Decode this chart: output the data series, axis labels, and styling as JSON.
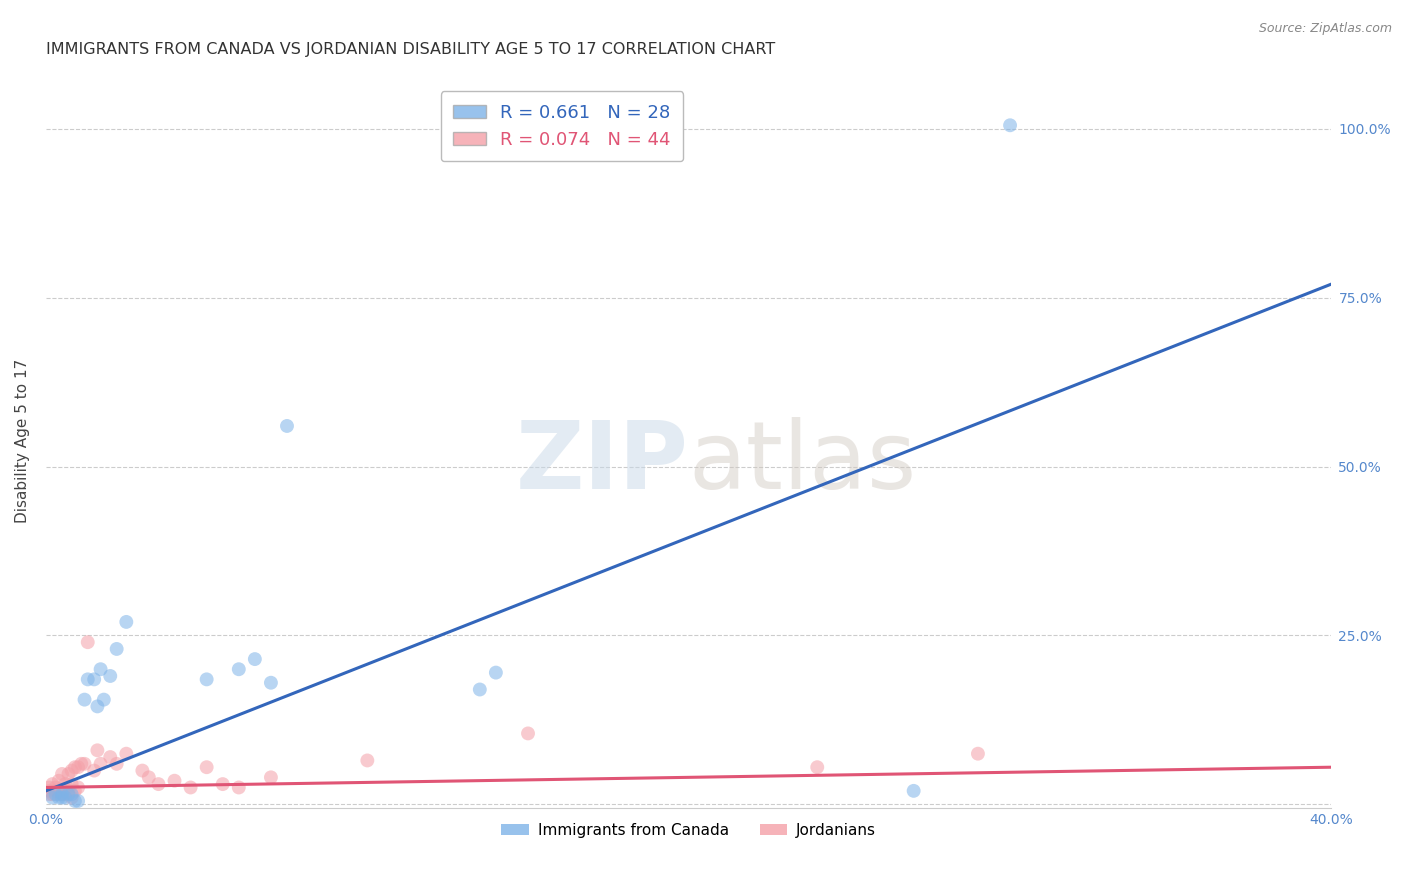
{
  "title": "IMMIGRANTS FROM CANADA VS JORDANIAN DISABILITY AGE 5 TO 17 CORRELATION CHART",
  "source": "Source: ZipAtlas.com",
  "ylabel": "Disability Age 5 to 17",
  "watermark_zip": "ZIP",
  "watermark_atlas": "atlas",
  "xmin": 0.0,
  "xmax": 0.4,
  "ymin": -0.005,
  "ymax": 1.08,
  "yticks": [
    0.0,
    0.25,
    0.5,
    0.75,
    1.0
  ],
  "ytick_labels": [
    "",
    "25.0%",
    "50.0%",
    "75.0%",
    "100.0%"
  ],
  "xticks": [
    0.0,
    0.1,
    0.2,
    0.3,
    0.4
  ],
  "xtick_labels": [
    "0.0%",
    "",
    "",
    "",
    "40.0%"
  ],
  "legend_blue_label": "R = 0.661   N = 28",
  "legend_pink_label": "R = 0.074   N = 44",
  "legend_label1": "Immigrants from Canada",
  "legend_label2": "Jordanians",
  "blue_color": "#7EB3E8",
  "pink_color": "#F4A0A8",
  "blue_line_color": "#3366BB",
  "pink_line_color": "#E05575",
  "right_tick_color": "#5588CC",
  "blue_scatter_x": [
    0.002,
    0.003,
    0.004,
    0.005,
    0.005,
    0.006,
    0.007,
    0.008,
    0.009,
    0.01,
    0.012,
    0.013,
    0.015,
    0.016,
    0.017,
    0.018,
    0.02,
    0.022,
    0.025,
    0.05,
    0.06,
    0.065,
    0.07,
    0.075,
    0.135,
    0.14,
    0.27,
    0.3
  ],
  "blue_scatter_y": [
    0.01,
    0.015,
    0.01,
    0.015,
    0.01,
    0.01,
    0.015,
    0.015,
    0.005,
    0.005,
    0.155,
    0.185,
    0.185,
    0.145,
    0.2,
    0.155,
    0.19,
    0.23,
    0.27,
    0.185,
    0.2,
    0.215,
    0.18,
    0.56,
    0.17,
    0.195,
    0.02,
    1.005
  ],
  "pink_scatter_x": [
    0.001,
    0.001,
    0.001,
    0.002,
    0.002,
    0.003,
    0.003,
    0.004,
    0.004,
    0.005,
    0.005,
    0.006,
    0.006,
    0.007,
    0.007,
    0.008,
    0.008,
    0.008,
    0.009,
    0.009,
    0.01,
    0.01,
    0.011,
    0.012,
    0.013,
    0.015,
    0.016,
    0.017,
    0.02,
    0.022,
    0.025,
    0.03,
    0.032,
    0.035,
    0.04,
    0.045,
    0.05,
    0.055,
    0.06,
    0.07,
    0.1,
    0.15,
    0.24,
    0.29
  ],
  "pink_scatter_y": [
    0.02,
    0.025,
    0.015,
    0.03,
    0.015,
    0.025,
    0.02,
    0.035,
    0.015,
    0.045,
    0.015,
    0.03,
    0.015,
    0.045,
    0.02,
    0.05,
    0.03,
    0.01,
    0.055,
    0.02,
    0.055,
    0.025,
    0.06,
    0.06,
    0.24,
    0.05,
    0.08,
    0.06,
    0.07,
    0.06,
    0.075,
    0.05,
    0.04,
    0.03,
    0.035,
    0.025,
    0.055,
    0.03,
    0.025,
    0.04,
    0.065,
    0.105,
    0.055,
    0.075
  ],
  "blue_trendline_x": [
    0.0,
    0.4
  ],
  "blue_trendline_y": [
    0.02,
    0.77
  ],
  "pink_trendline_x": [
    0.0,
    0.4
  ],
  "pink_trendline_y": [
    0.025,
    0.055
  ],
  "background_color": "#FFFFFF",
  "grid_color": "#CCCCCC",
  "title_fontsize": 11.5,
  "axis_label_fontsize": 11,
  "tick_fontsize": 10,
  "scatter_size": 100,
  "scatter_alpha": 0.55
}
